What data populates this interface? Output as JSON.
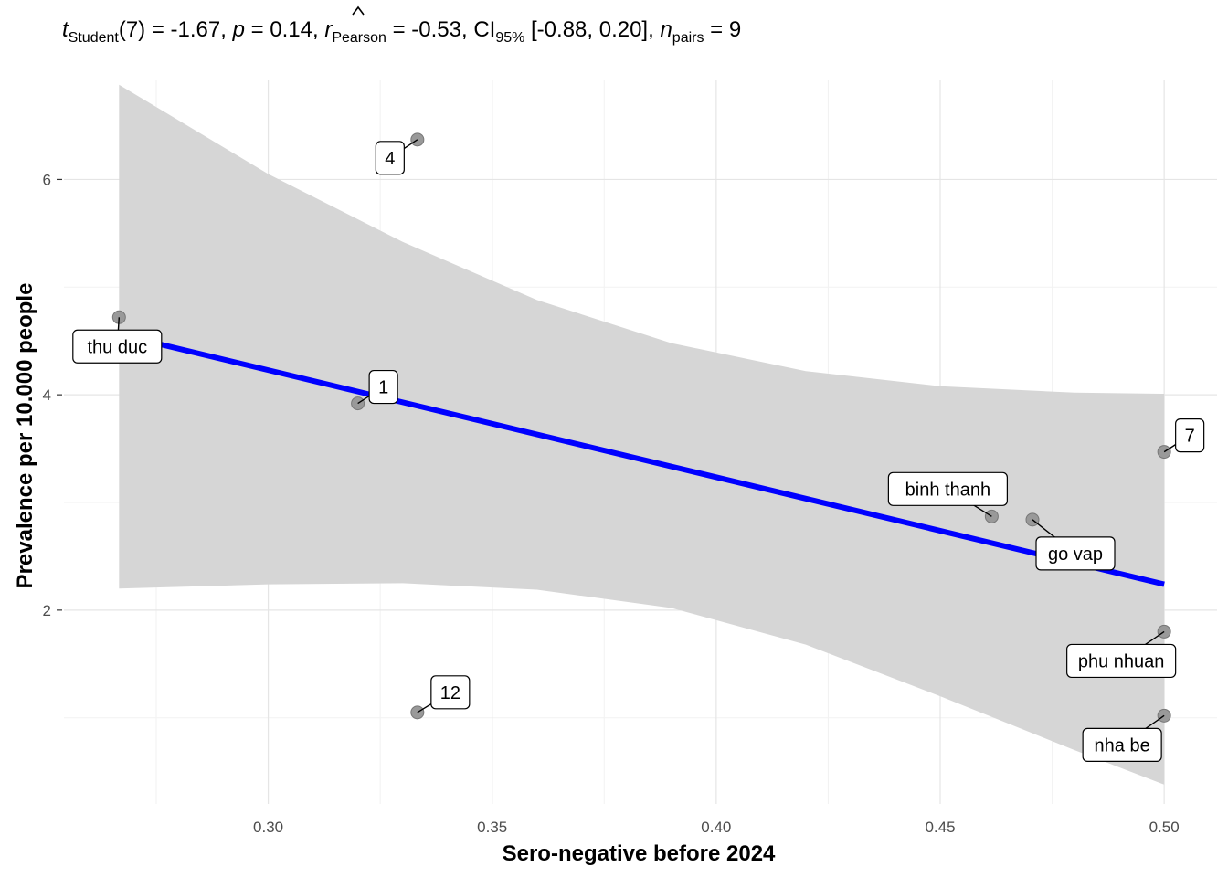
{
  "chart_data": {
    "type": "scatter",
    "subtitle": {
      "t_value": "(7) = -1.67, ",
      "p_value": " = 0.14, ",
      "r_value": " = -0.53, ",
      "ci_value": " [-0.88, 0.20], ",
      "n_value": " = 9"
    },
    "xlabel": "Sero-negative before 2024",
    "ylabel": "Prevalence per 10.000 people",
    "xlim": [
      0.2544,
      0.5118
    ],
    "ylim": [
      0.2,
      6.92
    ],
    "x_ticks": [
      {
        "value": 0.3,
        "label": "0.30"
      },
      {
        "value": 0.35,
        "label": "0.35"
      },
      {
        "value": 0.4,
        "label": "0.40"
      },
      {
        "value": 0.45,
        "label": "0.45"
      },
      {
        "value": 0.5,
        "label": "0.50"
      }
    ],
    "x_minor_ticks": [
      0.275,
      0.325,
      0.375,
      0.425,
      0.475
    ],
    "y_ticks": [
      {
        "value": 2,
        "label": "2"
      },
      {
        "value": 4,
        "label": "4"
      },
      {
        "value": 6,
        "label": "6"
      }
    ],
    "y_minor_ticks": [
      1,
      3,
      5
    ],
    "grid": true,
    "point_color": "#999999",
    "line_color": "#0000ff",
    "band_color": "#d6d6d6",
    "fit_line": {
      "x": [
        0.2667,
        0.5
      ],
      "y": [
        4.56,
        2.24
      ]
    },
    "ci_band": {
      "x": [
        0.2667,
        0.3,
        0.33,
        0.36,
        0.39,
        0.42,
        0.45,
        0.48,
        0.5
      ],
      "upper": [
        6.88,
        6.05,
        5.42,
        4.88,
        4.48,
        4.22,
        4.08,
        4.02,
        4.01
      ],
      "lower": [
        2.2,
        2.24,
        2.25,
        2.19,
        2.02,
        1.68,
        1.2,
        0.7,
        0.38
      ]
    },
    "points": [
      {
        "label": "thu duc",
        "x": 0.2667,
        "y": 4.72
      },
      {
        "label": "1",
        "x": 0.32,
        "y": 3.92
      },
      {
        "label": "4",
        "x": 0.3333,
        "y": 6.37
      },
      {
        "label": "12",
        "x": 0.3333,
        "y": 1.05
      },
      {
        "label": "binh thanh",
        "x": 0.4615,
        "y": 2.87
      },
      {
        "label": "go vap",
        "x": 0.4706,
        "y": 2.84
      },
      {
        "label": "7",
        "x": 0.5,
        "y": 3.47
      },
      {
        "label": "phu nhuan",
        "x": 0.5,
        "y": 1.8
      },
      {
        "label": "nha be",
        "x": 0.5,
        "y": 1.02
      }
    ]
  }
}
